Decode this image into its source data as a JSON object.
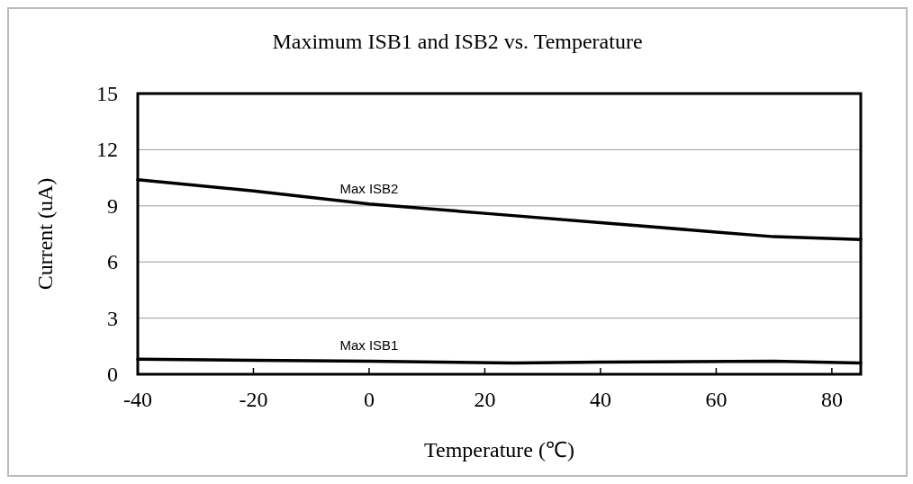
{
  "chart_data": {
    "type": "line",
    "title": "Maximum ISB1 and ISB2 vs. Temperature",
    "xlabel": "Temperature (℃)",
    "ylabel": "Current (uA)",
    "xlim": [
      -40,
      85
    ],
    "xticks": [
      -40,
      -20,
      0,
      20,
      40,
      60,
      80
    ],
    "ylim": [
      0,
      15
    ],
    "yticks": [
      0,
      3,
      6,
      9,
      12,
      15
    ],
    "grid": "y",
    "marker": "none",
    "line_style": "solid",
    "series": [
      {
        "name": "Max ISB2",
        "color": "#000000",
        "x": [
          -40,
          -20,
          0,
          20,
          40,
          60,
          70,
          85
        ],
        "values": [
          10.4,
          9.8,
          9.1,
          8.6,
          8.1,
          7.6,
          7.35,
          7.2
        ]
      },
      {
        "name": "Max ISB1",
        "color": "#000000",
        "x": [
          -40,
          -20,
          0,
          25,
          40,
          70,
          85
        ],
        "values": [
          0.8,
          0.75,
          0.7,
          0.6,
          0.65,
          0.7,
          0.6
        ]
      }
    ]
  }
}
